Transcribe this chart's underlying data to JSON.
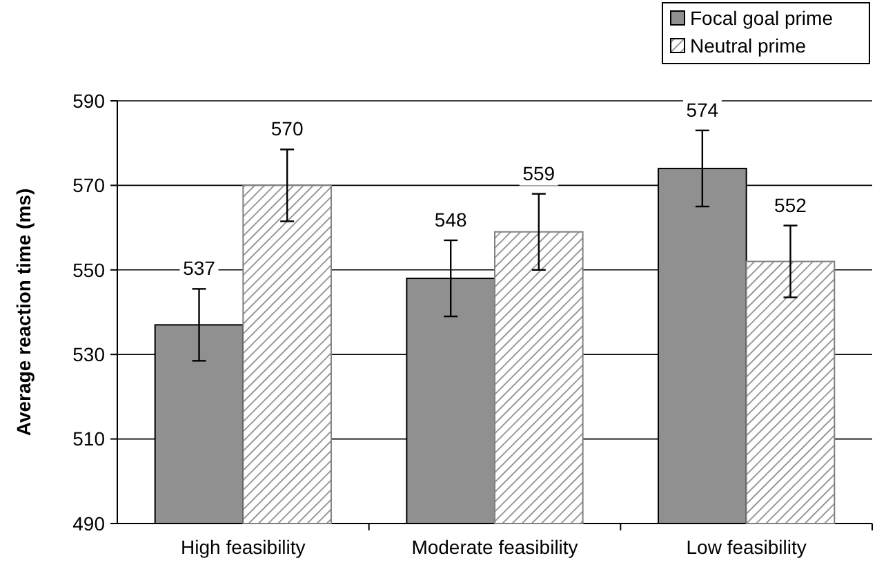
{
  "chart_data": {
    "type": "bar",
    "ylabel": "Average reaction time (ms)",
    "categories": [
      "High feasibility",
      "Moderate feasibility",
      "Low feasibility"
    ],
    "series": [
      {
        "name": "Focal goal prime",
        "color": "#909090",
        "values": [
          537,
          548,
          574
        ],
        "errors": [
          8.5,
          9,
          9
        ]
      },
      {
        "name": "Neutral prime",
        "color": "#808080",
        "values": [
          570,
          559,
          552
        ],
        "errors": [
          8.5,
          9,
          8.5
        ]
      }
    ],
    "ylim": [
      490,
      590
    ],
    "yticks": [
      490,
      510,
      530,
      550,
      570,
      590
    ],
    "grid": "y",
    "legend": "top right",
    "data_labels": true
  }
}
